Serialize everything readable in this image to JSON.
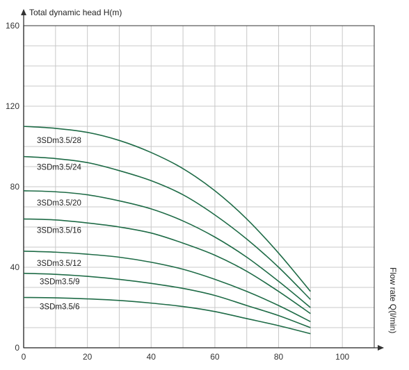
{
  "chart_data": {
    "type": "line",
    "ylabel": "Total dynamic head H(m)",
    "xlabel": "Flow rate Q(l/min)",
    "xlim": [
      0,
      110
    ],
    "ylim": [
      0,
      160
    ],
    "x_ticks": [
      "0",
      "20",
      "40",
      "60",
      "80",
      "100"
    ],
    "y_ticks": [
      "0",
      "40",
      "80",
      "120",
      "160"
    ],
    "grid": true,
    "line_color": "#1e6b46",
    "series": [
      {
        "name": "3SDm3.5/28",
        "x": [
          0,
          10,
          20,
          30,
          40,
          50,
          60,
          70,
          80,
          90
        ],
        "y": [
          110,
          109,
          107,
          103,
          97,
          89,
          78,
          64,
          47,
          28
        ]
      },
      {
        "name": "3SDm3.5/24",
        "x": [
          0,
          10,
          20,
          30,
          40,
          50,
          60,
          70,
          80,
          90
        ],
        "y": [
          95,
          94,
          92,
          88,
          83,
          76,
          66,
          54,
          40,
          24
        ]
      },
      {
        "name": "3SDm3.5/20",
        "x": [
          0,
          10,
          20,
          30,
          40,
          50,
          60,
          70,
          80,
          90
        ],
        "y": [
          78,
          77.5,
          76,
          73,
          69,
          63,
          55,
          45,
          33,
          20
        ]
      },
      {
        "name": "3SDm3.5/16",
        "x": [
          0,
          10,
          20,
          30,
          40,
          50,
          60,
          70,
          80,
          90
        ],
        "y": [
          64,
          63.5,
          62,
          60,
          57,
          52,
          46,
          38,
          28,
          17
        ]
      },
      {
        "name": "3SDm3.5/12",
        "x": [
          0,
          10,
          20,
          30,
          40,
          50,
          60,
          70,
          80,
          90
        ],
        "y": [
          48,
          47.5,
          46.5,
          45,
          42.5,
          39,
          34,
          28,
          21,
          13
        ]
      },
      {
        "name": "3SDm3.5/9",
        "x": [
          0,
          10,
          20,
          30,
          40,
          50,
          60,
          70,
          80,
          90
        ],
        "y": [
          37,
          36.5,
          35.5,
          34,
          32,
          29.5,
          26,
          21,
          16,
          10
        ]
      },
      {
        "name": "3SDm3.5/6",
        "x": [
          0,
          10,
          20,
          30,
          40,
          50,
          60,
          70,
          80,
          90
        ],
        "y": [
          25,
          24.8,
          24.3,
          23.5,
          22.2,
          20.5,
          18,
          14.5,
          11,
          7
        ]
      }
    ]
  }
}
